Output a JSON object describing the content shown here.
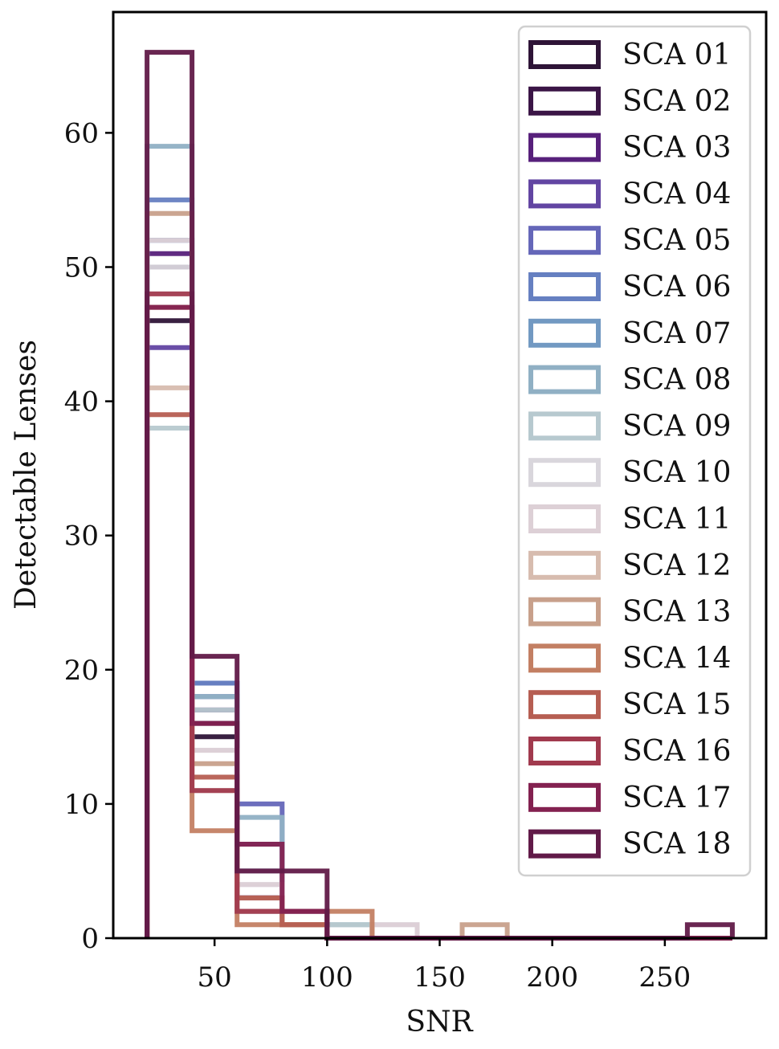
{
  "chart_data": {
    "type": "histogram-step",
    "xlabel": "SNR",
    "ylabel": "Detectable Lenses",
    "xlim": [
      5,
      295
    ],
    "ylim": [
      0,
      69
    ],
    "xticks": [
      50,
      100,
      150,
      200,
      250
    ],
    "yticks": [
      0,
      10,
      20,
      30,
      40,
      50,
      60
    ],
    "grid": false,
    "legend_position": "top-right",
    "bin_edges": [
      20,
      40,
      60,
      80,
      100,
      120,
      140,
      160,
      180,
      200,
      220,
      240,
      260,
      280
    ],
    "series": [
      {
        "name": "SCA 01",
        "color": "#2e1437",
        "counts": [
          46,
          15,
          2,
          1,
          0,
          0,
          0,
          0,
          0,
          0,
          0,
          0,
          0
        ]
      },
      {
        "name": "SCA 02",
        "color": "#3b1546",
        "counts": [
          50,
          16,
          3,
          1,
          0,
          0,
          0,
          0,
          0,
          0,
          0,
          0,
          0
        ]
      },
      {
        "name": "SCA 03",
        "color": "#57207b",
        "counts": [
          51,
          17,
          3,
          2,
          0,
          0,
          0,
          0,
          0,
          0,
          0,
          0,
          0
        ]
      },
      {
        "name": "SCA 04",
        "color": "#6245a2",
        "counts": [
          44,
          18,
          3,
          1,
          0,
          0,
          0,
          0,
          0,
          0,
          0,
          0,
          0
        ]
      },
      {
        "name": "SCA 05",
        "color": "#6567b9",
        "counts": [
          52,
          19,
          10,
          1,
          0,
          0,
          0,
          0,
          0,
          0,
          0,
          0,
          0
        ]
      },
      {
        "name": "SCA 06",
        "color": "#6680c1",
        "counts": [
          55,
          19,
          7,
          1,
          0,
          0,
          0,
          0,
          0,
          0,
          0,
          0,
          0
        ]
      },
      {
        "name": "SCA 07",
        "color": "#7299c2",
        "counts": [
          52,
          18,
          5,
          1,
          0,
          0,
          0,
          0,
          0,
          0,
          0,
          0,
          0
        ]
      },
      {
        "name": "SCA 08",
        "color": "#90b0c4",
        "counts": [
          59,
          18,
          9,
          1,
          1,
          0,
          0,
          0,
          0,
          0,
          0,
          0,
          0
        ]
      },
      {
        "name": "SCA 09",
        "color": "#b7c9cf",
        "counts": [
          38,
          17,
          5,
          2,
          1,
          0,
          0,
          0,
          0,
          0,
          0,
          0,
          0
        ]
      },
      {
        "name": "SCA 10",
        "color": "#d9d6dc",
        "counts": [
          50,
          14,
          4,
          1,
          0,
          1,
          0,
          0,
          0,
          0,
          0,
          0,
          0
        ]
      },
      {
        "name": "SCA 11",
        "color": "#ddd0d6",
        "counts": [
          52,
          14,
          4,
          1,
          0,
          1,
          0,
          0,
          0,
          0,
          0,
          0,
          0
        ]
      },
      {
        "name": "SCA 12",
        "color": "#d7bcaf",
        "counts": [
          41,
          11,
          2,
          1,
          0,
          0,
          0,
          0,
          0,
          0,
          0,
          0,
          0
        ]
      },
      {
        "name": "SCA 13",
        "color": "#c8a08b",
        "counts": [
          54,
          13,
          3,
          1,
          0,
          0,
          0,
          1,
          0,
          0,
          0,
          0,
          0
        ]
      },
      {
        "name": "SCA 14",
        "color": "#c37f63",
        "counts": [
          47,
          8,
          1,
          1,
          2,
          0,
          0,
          0,
          0,
          0,
          0,
          0,
          0
        ]
      },
      {
        "name": "SCA 15",
        "color": "#b65e52",
        "counts": [
          39,
          12,
          3,
          1,
          0,
          0,
          0,
          0,
          0,
          0,
          0,
          0,
          0
        ]
      },
      {
        "name": "SCA 16",
        "color": "#a13a4e",
        "counts": [
          48,
          11,
          2,
          2,
          0,
          0,
          0,
          0,
          0,
          0,
          0,
          0,
          0
        ]
      },
      {
        "name": "SCA 17",
        "color": "#832150",
        "counts": [
          47,
          16,
          7,
          2,
          0,
          0,
          0,
          0,
          0,
          0,
          0,
          0,
          0
        ]
      },
      {
        "name": "SCA 18",
        "color": "#611a48",
        "counts": [
          66,
          21,
          5,
          5,
          0,
          0,
          0,
          0,
          0,
          0,
          0,
          0,
          1
        ]
      }
    ]
  }
}
